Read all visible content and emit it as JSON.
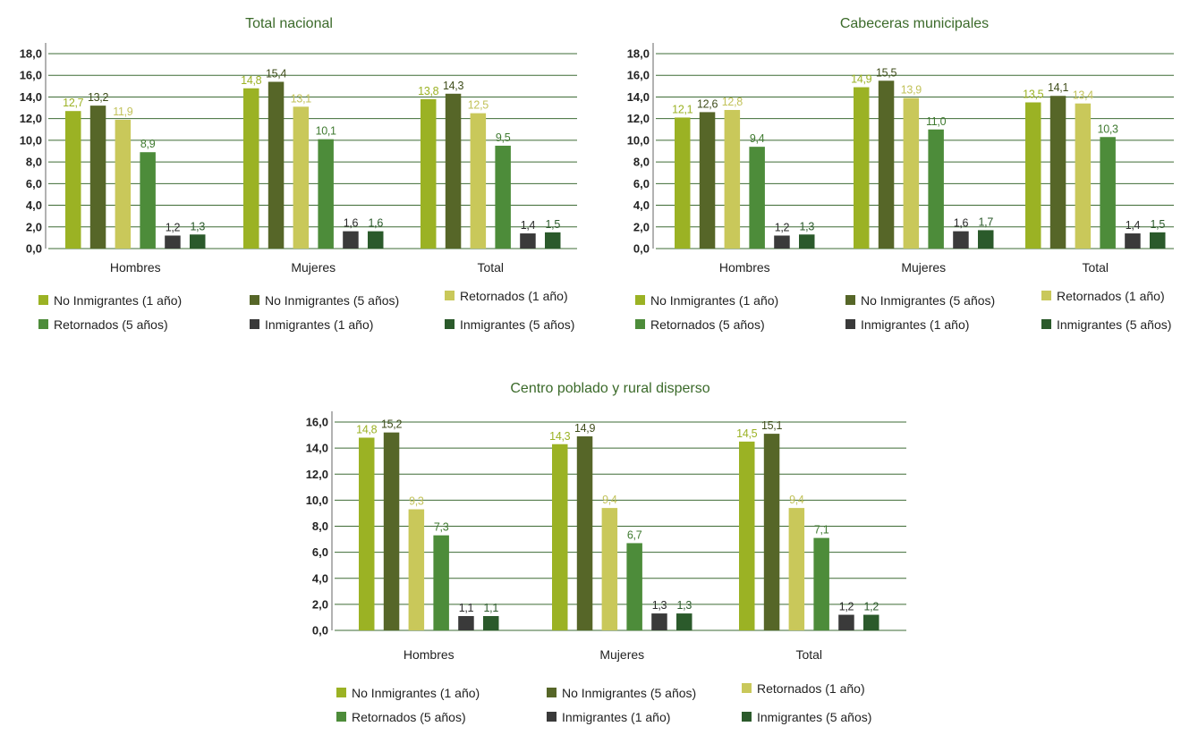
{
  "colors": {
    "text": "#222222",
    "title": "#3b6a2a",
    "grid": "#3e6b35"
  },
  "chart_data": [
    {
      "type": "bar",
      "title": "Total nacional",
      "categories": [
        "Hombres",
        "Mujeres",
        "Total"
      ],
      "ylim": [
        0,
        18
      ],
      "yticks": [
        "18,0",
        "16,0",
        "14,0",
        "12,0",
        "10,0",
        "8,0",
        "6,0",
        "4,0",
        "2,0",
        "0,0"
      ],
      "grid": true,
      "legend_position": "bottom",
      "series": [
        {
          "name": "No Inmigrantes (1 año)",
          "color": "#9bb224",
          "label_color": "#9bb224",
          "values": [
            12.7,
            14.8,
            13.8
          ],
          "labels": [
            "12,7",
            "14,8",
            "13,8"
          ]
        },
        {
          "name": "No Inmigrantes (5 años)",
          "color": "#566628",
          "label_color": "#3f4d1b",
          "values": [
            13.2,
            15.4,
            14.3
          ],
          "labels": [
            "13,2",
            "15,4",
            "14,3"
          ]
        },
        {
          "name": "Retornados (1 año)",
          "color": "#c9c85a",
          "label_color": "#c2c25a",
          "values": [
            11.9,
            13.1,
            12.5
          ],
          "labels": [
            "11,9",
            "13,1",
            "12,5"
          ]
        },
        {
          "name": "Retornados (5 años)",
          "color": "#4d8c3a",
          "label_color": "#3f7a30",
          "values": [
            8.9,
            10.1,
            9.5
          ],
          "labels": [
            "8,9",
            "10,1",
            "9,5"
          ]
        },
        {
          "name": "Inmigrantes (1 año)",
          "color": "#3a3a3a",
          "label_color": "#2a2a2a",
          "values": [
            1.2,
            1.6,
            1.4
          ],
          "labels": [
            "1,2",
            "1,6",
            "1,4"
          ]
        },
        {
          "name": "Inmigrantes (5 años)",
          "color": "#2b5a2b",
          "label_color": "#2b5a2b",
          "values": [
            1.3,
            1.6,
            1.5
          ],
          "labels": [
            "1,3",
            "1,6",
            "1,5"
          ]
        }
      ]
    },
    {
      "type": "bar",
      "title": "Cabeceras municipales",
      "categories": [
        "Hombres",
        "Mujeres",
        "Total"
      ],
      "ylim": [
        0,
        18
      ],
      "yticks": [
        "18,0",
        "16,0",
        "14,0",
        "12,0",
        "10,0",
        "8,0",
        "6,0",
        "4,0",
        "2,0",
        "0,0"
      ],
      "grid": true,
      "legend_position": "bottom",
      "series": [
        {
          "name": "No Inmigrantes (1 año)",
          "color": "#9bb224",
          "label_color": "#9bb224",
          "values": [
            12.1,
            14.9,
            13.5
          ],
          "labels": [
            "12,1",
            "14,9",
            "13,5"
          ]
        },
        {
          "name": "No Inmigrantes (5 años)",
          "color": "#566628",
          "label_color": "#3f4d1b",
          "values": [
            12.6,
            15.5,
            14.1
          ],
          "labels": [
            "12,6",
            "15,5",
            "14,1"
          ]
        },
        {
          "name": "Retornados (1 año)",
          "color": "#c9c85a",
          "label_color": "#c2c25a",
          "values": [
            12.8,
            13.9,
            13.4
          ],
          "labels": [
            "12,8",
            "13,9",
            "13,4"
          ]
        },
        {
          "name": "Retornados (5 años)",
          "color": "#4d8c3a",
          "label_color": "#3f7a30",
          "values": [
            9.4,
            11.0,
            10.3
          ],
          "labels": [
            "9,4",
            "11,0",
            "10,3"
          ]
        },
        {
          "name": "Inmigrantes (1 año)",
          "color": "#3a3a3a",
          "label_color": "#2a2a2a",
          "values": [
            1.2,
            1.6,
            1.4
          ],
          "labels": [
            "1,2",
            "1,6",
            "1,4"
          ]
        },
        {
          "name": "Inmigrantes (5 años)",
          "color": "#2b5a2b",
          "label_color": "#2b5a2b",
          "values": [
            1.3,
            1.7,
            1.5
          ],
          "labels": [
            "1,3",
            "1,7",
            "1,5"
          ]
        }
      ]
    },
    {
      "type": "bar",
      "title": "Centro poblado y rural disperso",
      "categories": [
        "Hombres",
        "Mujeres",
        "Total"
      ],
      "ylim": [
        0,
        16
      ],
      "yticks": [
        "16,0",
        "14,0",
        "12,0",
        "10,0",
        "8,0",
        "6,0",
        "4,0",
        "2,0",
        "0,0"
      ],
      "grid": true,
      "legend_position": "bottom",
      "series": [
        {
          "name": "No Inmigrantes (1 año)",
          "color": "#9bb224",
          "label_color": "#9bb224",
          "values": [
            14.8,
            14.3,
            14.5
          ],
          "labels": [
            "14,8",
            "14,3",
            "14,5"
          ]
        },
        {
          "name": "No Inmigrantes (5 años)",
          "color": "#566628",
          "label_color": "#3f4d1b",
          "values": [
            15.2,
            14.9,
            15.1
          ],
          "labels": [
            "15,2",
            "14,9",
            "15,1"
          ]
        },
        {
          "name": "Retornados (1 año)",
          "color": "#c9c85a",
          "label_color": "#c2c25a",
          "values": [
            9.3,
            9.4,
            9.4
          ],
          "labels": [
            "9,3",
            "9,4",
            "9,4"
          ]
        },
        {
          "name": "Retornados (5 años)",
          "color": "#4d8c3a",
          "label_color": "#3f7a30",
          "values": [
            7.3,
            6.7,
            7.1
          ],
          "labels": [
            "7,3",
            "6,7",
            "7,1"
          ]
        },
        {
          "name": "Inmigrantes (1 año)",
          "color": "#3a3a3a",
          "label_color": "#2a2a2a",
          "values": [
            1.1,
            1.3,
            1.2
          ],
          "labels": [
            "1,1",
            "1,3",
            "1,2"
          ]
        },
        {
          "name": "Inmigrantes (5 años)",
          "color": "#2b5a2b",
          "label_color": "#2b5a2b",
          "values": [
            1.1,
            1.3,
            1.2
          ],
          "labels": [
            "1,1",
            "1,3",
            "1,2"
          ]
        }
      ]
    }
  ]
}
